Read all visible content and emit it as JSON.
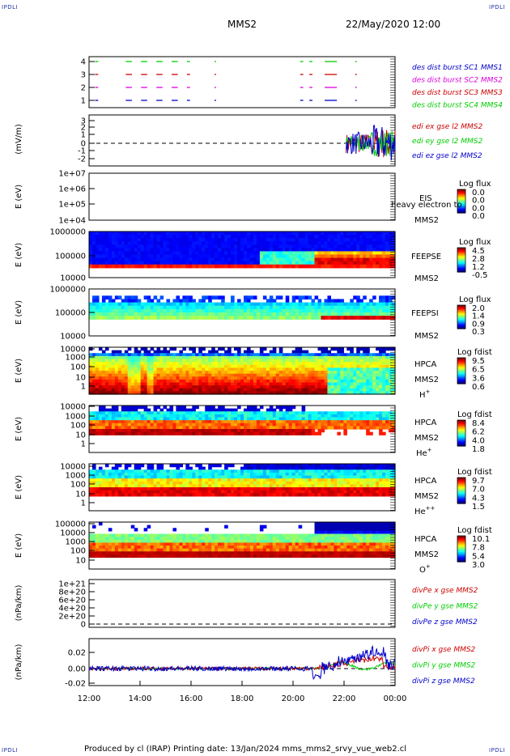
{
  "corners": {
    "top_left": "IPDLI",
    "top_right": "IPDLI",
    "bottom_left": "IPDLI",
    "bottom_right": "IPDLI"
  },
  "header": {
    "spacecraft": "MMS2",
    "datetime": "22/May/2020 12:00"
  },
  "footer": "Produced by cl (IRAP)   Printing date: 13/Jan/2024   mms_mms2_srvy_vue_web2.cl",
  "colors": {
    "red": "#cc0000",
    "green": "#00cc00",
    "blue": "#0000cc",
    "magenta": "#dd00dd"
  },
  "chart_data": [
    {
      "type": "scatter",
      "id": "burst",
      "yticks": [
        "4",
        "3",
        "2",
        "1"
      ],
      "legend": [
        {
          "label": "des dist burst SC1 MMS1",
          "color": "#0000cc"
        },
        {
          "label": "des dist burst SC2 MMS2",
          "color": "#dd00dd"
        },
        {
          "label": "des dist burst SC3 MMS3",
          "color": "#cc0000"
        },
        {
          "label": "des dist burst SC4 MMS4",
          "color": "#00cc00"
        }
      ]
    },
    {
      "type": "line",
      "id": "edi",
      "ylabel": "(mV/m)",
      "yticks": [
        "3",
        "2",
        "1",
        "0",
        "-1",
        "-2"
      ],
      "legend": [
        {
          "label": "edi ex gse l2 MMS2",
          "color": "#cc0000"
        },
        {
          "label": "edi ey gse l2 MMS2",
          "color": "#00cc00"
        },
        {
          "label": "edi ez gse l2 MMS2",
          "color": "#0000cc"
        }
      ]
    },
    {
      "type": "heatmap",
      "id": "eis",
      "ylabel": "E (eV)",
      "yticks": [
        "1e+07",
        "1e+06",
        "1e+05",
        "1e+04"
      ],
      "name": "EIS",
      "instr": "MMS2",
      "cbar_title": "Log flux",
      "cbar_ticks": [
        "0.0",
        "0.0",
        "0.0",
        "0.0"
      ],
      "overlap": "heavy electron to"
    },
    {
      "type": "heatmap",
      "id": "feepse",
      "ylabel": "E (eV)",
      "yticks": [
        "1000000",
        "100000",
        "10000"
      ],
      "name": "FEEPSE",
      "instr": "MMS2",
      "cbar_title": "Log flux",
      "cbar_ticks": [
        "4.5",
        "2.8",
        "1.2",
        "-0.5"
      ]
    },
    {
      "type": "heatmap",
      "id": "feepsi",
      "ylabel": "E (eV)",
      "yticks": [
        "1000000",
        "100000",
        "10000"
      ],
      "name": "FEEPSI",
      "instr": "MMS2",
      "cbar_title": "Log flux",
      "cbar_ticks": [
        "2.0",
        "1.4",
        "0.9",
        "0.3"
      ]
    },
    {
      "type": "heatmap",
      "id": "hpca_h",
      "ylabel": "E (eV)",
      "yticks": [
        "10000",
        "1000",
        "100",
        "10",
        "1"
      ],
      "name": "HPCA",
      "instr": "MMS2",
      "species": "H",
      "sup": "+",
      "cbar_title": "Log fdist",
      "cbar_ticks": [
        "9.5",
        "6.5",
        "3.6",
        "0.6"
      ]
    },
    {
      "type": "heatmap",
      "id": "hpca_he",
      "ylabel": "E (eV)",
      "yticks": [
        "10000",
        "1000",
        "100",
        "10",
        "1"
      ],
      "name": "HPCA",
      "instr": "MMS2",
      "species": "He",
      "sup": "+",
      "cbar_title": "Log fdist",
      "cbar_ticks": [
        "8.4",
        "6.2",
        "4.0",
        "1.8"
      ]
    },
    {
      "type": "heatmap",
      "id": "hpca_hepp",
      "ylabel": "E (eV)",
      "yticks": [
        "10000",
        "1000",
        "100",
        "10",
        "1"
      ],
      "name": "HPCA",
      "instr": "MMS2",
      "species": "He",
      "sup": "++",
      "cbar_title": "Log fdist",
      "cbar_ticks": [
        "9.7",
        "7.0",
        "4.3",
        "1.5"
      ]
    },
    {
      "type": "heatmap",
      "id": "hpca_o",
      "ylabel": "E (eV)",
      "yticks": [
        "100000",
        "10000",
        "1000",
        "100",
        "10"
      ],
      "name": "HPCA",
      "instr": "MMS2",
      "species": "O",
      "sup": "+",
      "cbar_title": "Log fdist",
      "cbar_ticks": [
        "10.1",
        "7.8",
        "5.4",
        "3.0"
      ]
    },
    {
      "type": "line",
      "id": "divpe",
      "ylabel": "(nPa/km)",
      "yticks": [
        "1e+21",
        "8e+20",
        "6e+20",
        "4e+20",
        "2e+20",
        "0"
      ],
      "legend": [
        {
          "label": "divPe x gse MMS2",
          "color": "#cc0000"
        },
        {
          "label": "divPe y gse MMS2",
          "color": "#00cc00"
        },
        {
          "label": "divPe z gse MMS2",
          "color": "#0000cc"
        }
      ]
    },
    {
      "type": "line",
      "id": "divpi",
      "ylabel": "(nPa/km)",
      "yticks": [
        "0.02",
        "0.00",
        "-0.02"
      ],
      "legend": [
        {
          "label": "divPi x gse MMS2",
          "color": "#cc0000"
        },
        {
          "label": "divPi y gse MMS2",
          "color": "#00cc00"
        },
        {
          "label": "divPi z gse MMS2",
          "color": "#0000cc"
        }
      ]
    }
  ],
  "xaxis": {
    "ticks": [
      "12:00",
      "14:00",
      "16:00",
      "18:00",
      "20:00",
      "22:00",
      "00:00"
    ]
  }
}
